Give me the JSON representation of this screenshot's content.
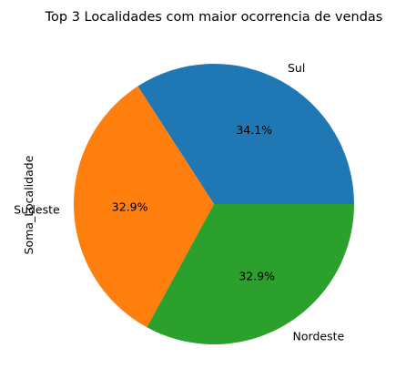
{
  "chart_data": {
    "type": "pie",
    "title": "Top 3 Localidades com maior ocorrencia de vendas",
    "ylabel": "Soma_Localidade",
    "slices": [
      {
        "label": "Sul",
        "value": 34.1,
        "pct_label": "34.1%",
        "color": "#1f77b4"
      },
      {
        "label": "Sudeste",
        "value": 32.9,
        "pct_label": "32.9%",
        "color": "#ff7f0e"
      },
      {
        "label": "Nordeste",
        "value": 32.9,
        "pct_label": "32.9%",
        "color": "#2ca02c"
      }
    ]
  }
}
